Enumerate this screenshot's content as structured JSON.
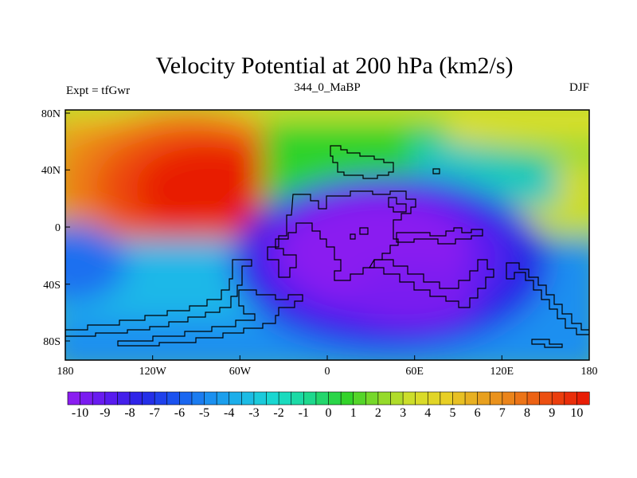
{
  "title": "Velocity Potential at 200 hPa (km2/s)",
  "left_label": "Expt = tfGwr",
  "center_label": "344_0_MaBP",
  "right_label": "DJF",
  "map": {
    "projection": "cylindrical equidistant",
    "lon_range": [
      -180,
      180
    ],
    "lat_range": [
      -90,
      90
    ],
    "lon_ticks": [
      {
        "value": -180,
        "label": "180"
      },
      {
        "value": -120,
        "label": "120W"
      },
      {
        "value": -60,
        "label": "60W"
      },
      {
        "value": 0,
        "label": "0"
      },
      {
        "value": 60,
        "label": "60E"
      },
      {
        "value": 120,
        "label": "120E"
      },
      {
        "value": 180,
        "label": "180"
      }
    ],
    "lat_ticks": [
      {
        "value": 80,
        "label": "80N"
      },
      {
        "value": 40,
        "label": "40N"
      },
      {
        "value": 0,
        "label": "0"
      },
      {
        "value": -40,
        "label": "40S"
      },
      {
        "value": -80,
        "label": "80S"
      }
    ],
    "field_features": [
      {
        "name": "positive-maximum",
        "lon": -90,
        "lat": 28,
        "peak": 10.5
      },
      {
        "name": "negative-minimum",
        "lon": 45,
        "lat": -18,
        "peak": -10.5
      },
      {
        "name": "secondary-high-east-pacific",
        "lon": 175,
        "lat": 20,
        "peak": 5.5
      },
      {
        "name": "secondary-low-west-atlantic",
        "lon": -180,
        "lat": -25,
        "peak": -4.5
      }
    ]
  },
  "colorbar": {
    "min": -10.5,
    "max": 10.5,
    "step": 0.5,
    "tick_labels": [
      "-10",
      "-9",
      "-8",
      "-7",
      "-6",
      "-5",
      "-4",
      "-3",
      "-2",
      "-1",
      "0",
      "1",
      "2",
      "3",
      "4",
      "5",
      "6",
      "7",
      "8",
      "9",
      "10"
    ],
    "anchor_colors": [
      "#8a1df0",
      "#5d1af0",
      "#2626e6",
      "#1a56f0",
      "#1b8ff0",
      "#1cb8e8",
      "#19dccd",
      "#1ed88a",
      "#2fd32a",
      "#8ad92a",
      "#d5df2a",
      "#e8cf25",
      "#e8a31f",
      "#ec7d19",
      "#ec4a10",
      "#e81e06"
    ]
  }
}
